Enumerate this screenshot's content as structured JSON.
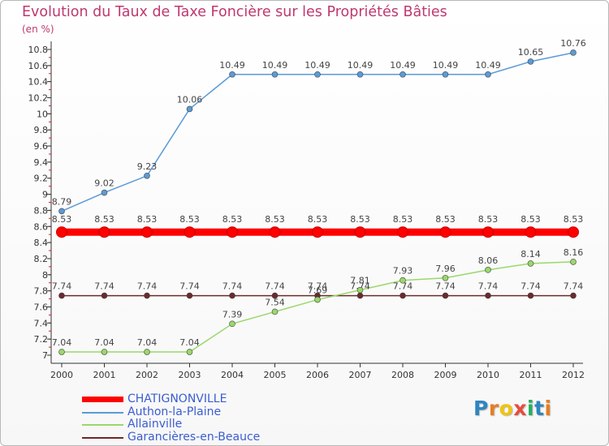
{
  "chart_data": {
    "type": "line",
    "title": "Evolution du Taux de Taxe Foncière sur les Propriétés Bâties",
    "subtitle": "(en %)",
    "x": [
      "2000",
      "2001",
      "2002",
      "2003",
      "2004",
      "2005",
      "2006",
      "2007",
      "2008",
      "2009",
      "2010",
      "2011",
      "2012"
    ],
    "ylim": [
      7,
      10.8
    ],
    "yticks": [
      "7",
      "7.2",
      "7.4",
      "7.6",
      "7.8",
      "8",
      "8.2",
      "8.4",
      "8.6",
      "8.8",
      "9",
      "9.2",
      "9.4",
      "9.6",
      "9.8",
      "10",
      "10.2",
      "10.4",
      "10.6",
      "10.8"
    ],
    "grid": false,
    "series": [
      {
        "name": "CHATIGNONVILLE",
        "color": "#ff0000",
        "highlight": true,
        "values": [
          8.53,
          8.53,
          8.53,
          8.53,
          8.53,
          8.53,
          8.53,
          8.53,
          8.53,
          8.53,
          8.53,
          8.53,
          8.53
        ],
        "labels": [
          "8.53",
          "8.53",
          "8.53",
          "8.53",
          "8.53",
          "8.53",
          "8.53",
          "8.53",
          "8.53",
          "8.53",
          "8.53",
          "8.53",
          "8.53"
        ]
      },
      {
        "name": "Authon-la-Plaine",
        "color": "#5b9bd5",
        "values": [
          8.79,
          9.02,
          9.23,
          10.06,
          10.49,
          10.49,
          10.49,
          10.49,
          10.49,
          10.49,
          10.49,
          10.65,
          10.76
        ],
        "labels": [
          "8.79",
          "9.02",
          "9.23",
          "10.06",
          "10.49",
          "10.49",
          "10.49",
          "10.49",
          "10.49",
          "10.49",
          "10.49",
          "10.65",
          "10.76"
        ]
      },
      {
        "name": "Allainville",
        "color": "#99d86a",
        "values": [
          7.04,
          7.04,
          7.04,
          7.04,
          7.39,
          7.54,
          7.69,
          7.81,
          7.93,
          7.96,
          8.06,
          8.14,
          8.16
        ],
        "labels": [
          "7.04",
          "7.04",
          "7.04",
          "7.04",
          "7.39",
          "7.54",
          "7.69",
          "7.81",
          "7.93",
          "7.96",
          "8.06",
          "8.14",
          "8.16"
        ]
      },
      {
        "name": "Garancières-en-Beauce",
        "color": "#6b2a2a",
        "values": [
          7.74,
          7.74,
          7.74,
          7.74,
          7.74,
          7.74,
          7.74,
          7.74,
          7.74,
          7.74,
          7.74,
          7.74,
          7.74
        ],
        "labels": [
          "7.74",
          "7.74",
          "7.74",
          "7.74",
          "7.74",
          "7.74",
          "7.74",
          "7.74",
          "7.74",
          "7.74",
          "7.74",
          "7.74",
          "7.74"
        ]
      }
    ]
  },
  "logo": {
    "letters": [
      "P",
      "r",
      "o",
      "x",
      "i",
      "t",
      "i"
    ],
    "colors": [
      "#2e86c1",
      "#e67e22",
      "#f1c40f",
      "#e74c3c",
      "#27ae60",
      "#2e86c1",
      "#e67e22"
    ]
  }
}
